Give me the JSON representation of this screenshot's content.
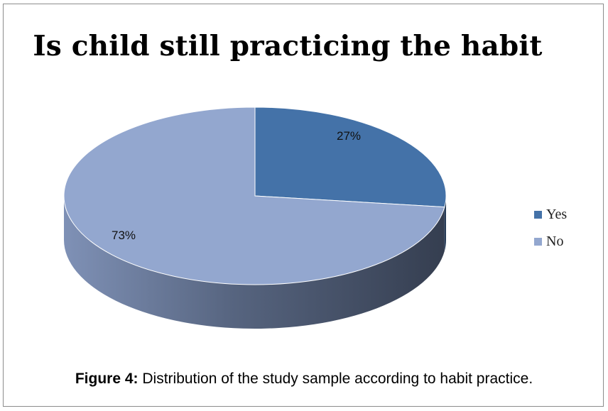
{
  "chart_data": {
    "type": "pie",
    "title": "Is child still practicing the habit",
    "categories": [
      "Yes",
      "No"
    ],
    "values": [
      27,
      73
    ],
    "data_labels": [
      "27%",
      "73%"
    ],
    "colors": [
      "#4472a8",
      "#93a7cf"
    ],
    "legend_position": "right"
  },
  "caption": {
    "figure_label": "Figure 4:",
    "text": " Distribution of the study sample according to habit practice."
  }
}
